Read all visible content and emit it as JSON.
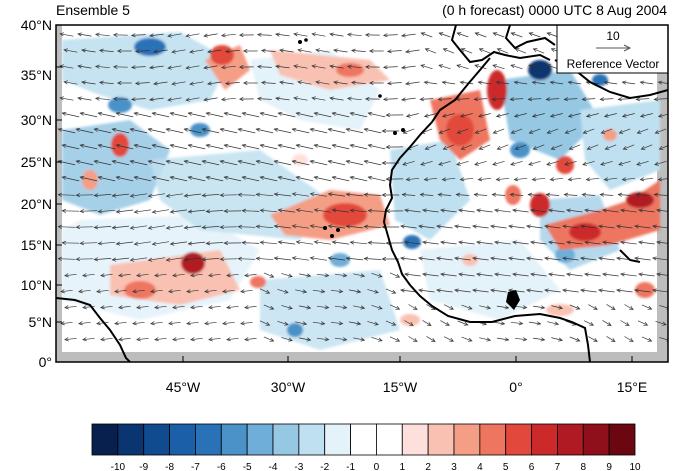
{
  "header": {
    "title_left": "Ensemble 5",
    "title_right": "(0 h forecast) 0000 UTC 8 Aug 2004"
  },
  "map": {
    "lat_ticks": [
      "40°N",
      "35°N",
      "30°N",
      "25°N",
      "20°N",
      "15°N",
      "10°N",
      "5°N",
      "0°"
    ],
    "lon_ticks": [
      "45°W",
      "30°W",
      "15°W",
      "0°",
      "15°E"
    ],
    "missing_fill_color": "#bdbdbd",
    "coastline_color": "#000000"
  },
  "reference_vector": {
    "magnitude_label": "10",
    "label": "Reference Vector"
  },
  "colorbar": {
    "labels": [
      "-10",
      "-9",
      "-8",
      "-7",
      "-6",
      "-5",
      "-4",
      "-3",
      "-2",
      "-1",
      "0",
      "1",
      "2",
      "3",
      "4",
      "5",
      "6",
      "7",
      "8",
      "9",
      "10"
    ],
    "colors": [
      "#07204d",
      "#0a3570",
      "#104a8f",
      "#1a5fa8",
      "#2a72b8",
      "#4a92c8",
      "#6eaed8",
      "#96c8e4",
      "#bfe0f0",
      "#e4f2f9",
      "#ffffff",
      "#ffffff",
      "#fde0dc",
      "#f9c1b2",
      "#f59e86",
      "#ee7660",
      "#e2483b",
      "#cc2a2a",
      "#b01a22",
      "#8f0f1a",
      "#6a0711"
    ]
  }
}
